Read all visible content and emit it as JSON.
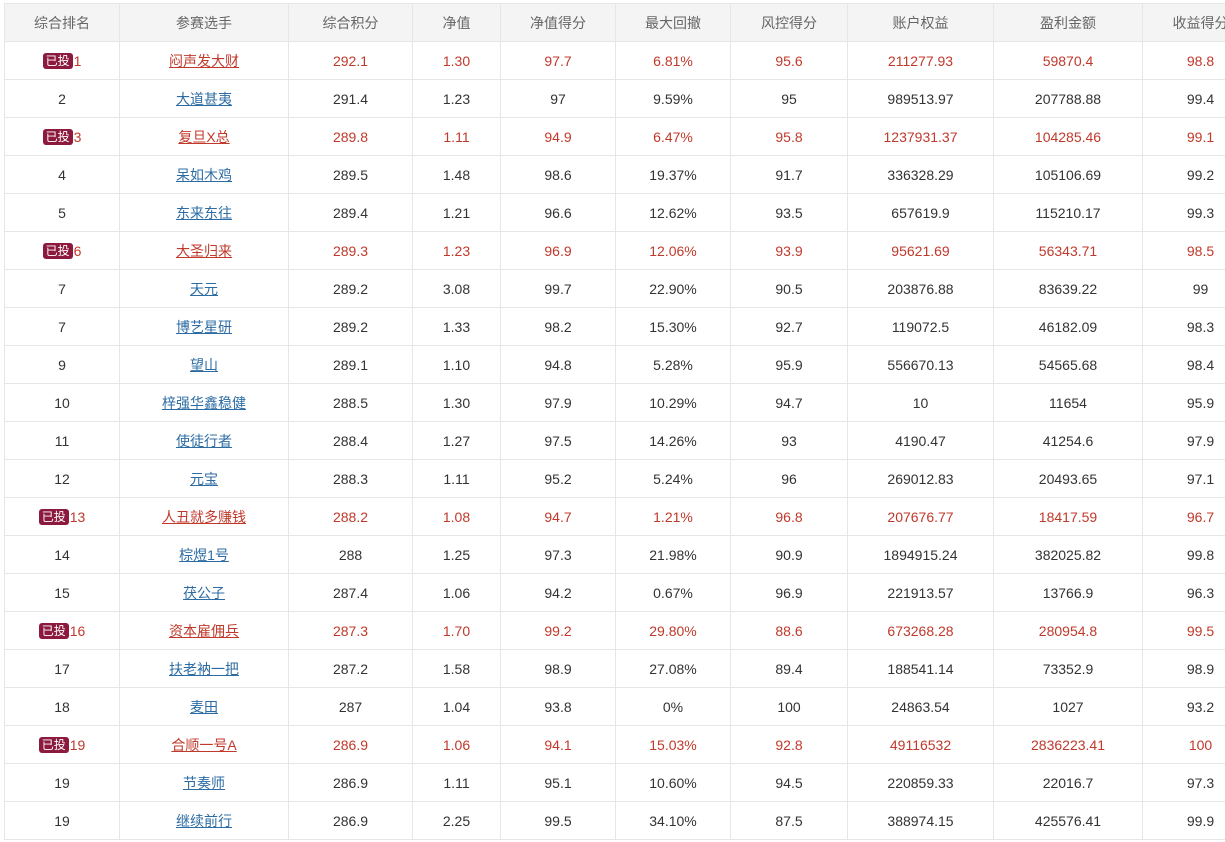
{
  "colors": {
    "invested_text": "#c0392b",
    "badge_bg": "#8b1a3e",
    "link": "#2c6ca3",
    "header_bg": "#f4f4f4",
    "border": "#e6e6e6"
  },
  "headers": [
    "综合排名",
    "参赛选手",
    "综合积分",
    "净值",
    "净值得分",
    "最大回撤",
    "风控得分",
    "账户权益",
    "盈利金额",
    "收益得分"
  ],
  "rows": [
    {
      "rank": "1",
      "badge": "已投",
      "name": "闷声发大财",
      "score": "292.1",
      "nav": "1.30",
      "nav_score": "97.7",
      "drawdown": "6.81%",
      "risk_score": "95.6",
      "equity": "211277.93",
      "profit": "59870.4",
      "return_score": "98.8"
    },
    {
      "rank": "2",
      "badge": "",
      "name": "大道甚夷",
      "score": "291.4",
      "nav": "1.23",
      "nav_score": "97",
      "drawdown": "9.59%",
      "risk_score": "95",
      "equity": "989513.97",
      "profit": "207788.88",
      "return_score": "99.4"
    },
    {
      "rank": "3",
      "badge": "已投",
      "name": "复旦X总",
      "score": "289.8",
      "nav": "1.11",
      "nav_score": "94.9",
      "drawdown": "6.47%",
      "risk_score": "95.8",
      "equity": "1237931.37",
      "profit": "104285.46",
      "return_score": "99.1"
    },
    {
      "rank": "4",
      "badge": "",
      "name": "呆如木鸡",
      "score": "289.5",
      "nav": "1.48",
      "nav_score": "98.6",
      "drawdown": "19.37%",
      "risk_score": "91.7",
      "equity": "336328.29",
      "profit": "105106.69",
      "return_score": "99.2"
    },
    {
      "rank": "5",
      "badge": "",
      "name": "东来东往",
      "score": "289.4",
      "nav": "1.21",
      "nav_score": "96.6",
      "drawdown": "12.62%",
      "risk_score": "93.5",
      "equity": "657619.9",
      "profit": "115210.17",
      "return_score": "99.3"
    },
    {
      "rank": "6",
      "badge": "已投",
      "name": "大圣归来",
      "score": "289.3",
      "nav": "1.23",
      "nav_score": "96.9",
      "drawdown": "12.06%",
      "risk_score": "93.9",
      "equity": "95621.69",
      "profit": "56343.71",
      "return_score": "98.5"
    },
    {
      "rank": "7",
      "badge": "",
      "name": "天元",
      "score": "289.2",
      "nav": "3.08",
      "nav_score": "99.7",
      "drawdown": "22.90%",
      "risk_score": "90.5",
      "equity": "203876.88",
      "profit": "83639.22",
      "return_score": "99"
    },
    {
      "rank": "7",
      "badge": "",
      "name": "博艺星研",
      "score": "289.2",
      "nav": "1.33",
      "nav_score": "98.2",
      "drawdown": "15.30%",
      "risk_score": "92.7",
      "equity": "119072.5",
      "profit": "46182.09",
      "return_score": "98.3"
    },
    {
      "rank": "9",
      "badge": "",
      "name": "望山",
      "score": "289.1",
      "nav": "1.10",
      "nav_score": "94.8",
      "drawdown": "5.28%",
      "risk_score": "95.9",
      "equity": "556670.13",
      "profit": "54565.68",
      "return_score": "98.4"
    },
    {
      "rank": "10",
      "badge": "",
      "name": "梓强华鑫稳健",
      "score": "288.5",
      "nav": "1.30",
      "nav_score": "97.9",
      "drawdown": "10.29%",
      "risk_score": "94.7",
      "equity": "10",
      "profit": "11654",
      "return_score": "95.9"
    },
    {
      "rank": "11",
      "badge": "",
      "name": "使徒行者",
      "score": "288.4",
      "nav": "1.27",
      "nav_score": "97.5",
      "drawdown": "14.26%",
      "risk_score": "93",
      "equity": "4190.47",
      "profit": "41254.6",
      "return_score": "97.9"
    },
    {
      "rank": "12",
      "badge": "",
      "name": "元宝",
      "score": "288.3",
      "nav": "1.11",
      "nav_score": "95.2",
      "drawdown": "5.24%",
      "risk_score": "96",
      "equity": "269012.83",
      "profit": "20493.65",
      "return_score": "97.1"
    },
    {
      "rank": "13",
      "badge": "已投",
      "name": "人丑就多赚钱",
      "score": "288.2",
      "nav": "1.08",
      "nav_score": "94.7",
      "drawdown": "1.21%",
      "risk_score": "96.8",
      "equity": "207676.77",
      "profit": "18417.59",
      "return_score": "96.7"
    },
    {
      "rank": "14",
      "badge": "",
      "name": "棕煜1号",
      "score": "288",
      "nav": "1.25",
      "nav_score": "97.3",
      "drawdown": "21.98%",
      "risk_score": "90.9",
      "equity": "1894915.24",
      "profit": "382025.82",
      "return_score": "99.8"
    },
    {
      "rank": "15",
      "badge": "",
      "name": "茯公子",
      "score": "287.4",
      "nav": "1.06",
      "nav_score": "94.2",
      "drawdown": "0.67%",
      "risk_score": "96.9",
      "equity": "221913.57",
      "profit": "13766.9",
      "return_score": "96.3"
    },
    {
      "rank": "16",
      "badge": "已投",
      "name": "资本雇佣兵",
      "score": "287.3",
      "nav": "1.70",
      "nav_score": "99.2",
      "drawdown": "29.80%",
      "risk_score": "88.6",
      "equity": "673268.28",
      "profit": "280954.8",
      "return_score": "99.5"
    },
    {
      "rank": "17",
      "badge": "",
      "name": "扶老衲一把",
      "score": "287.2",
      "nav": "1.58",
      "nav_score": "98.9",
      "drawdown": "27.08%",
      "risk_score": "89.4",
      "equity": "188541.14",
      "profit": "73352.9",
      "return_score": "98.9"
    },
    {
      "rank": "18",
      "badge": "",
      "name": "麦田",
      "score": "287",
      "nav": "1.04",
      "nav_score": "93.8",
      "drawdown": "0%",
      "risk_score": "100",
      "equity": "24863.54",
      "profit": "1027",
      "return_score": "93.2"
    },
    {
      "rank": "19",
      "badge": "已投",
      "name": "合顺一号A",
      "score": "286.9",
      "nav": "1.06",
      "nav_score": "94.1",
      "drawdown": "15.03%",
      "risk_score": "92.8",
      "equity": "49116532",
      "profit": "2836223.41",
      "return_score": "100"
    },
    {
      "rank": "19",
      "badge": "",
      "name": "节奏师",
      "score": "286.9",
      "nav": "1.11",
      "nav_score": "95.1",
      "drawdown": "10.60%",
      "risk_score": "94.5",
      "equity": "220859.33",
      "profit": "22016.7",
      "return_score": "97.3"
    },
    {
      "rank": "19",
      "badge": "",
      "name": "继续前行",
      "score": "286.9",
      "nav": "2.25",
      "nav_score": "99.5",
      "drawdown": "34.10%",
      "risk_score": "87.5",
      "equity": "388974.15",
      "profit": "425576.41",
      "return_score": "99.9"
    }
  ]
}
